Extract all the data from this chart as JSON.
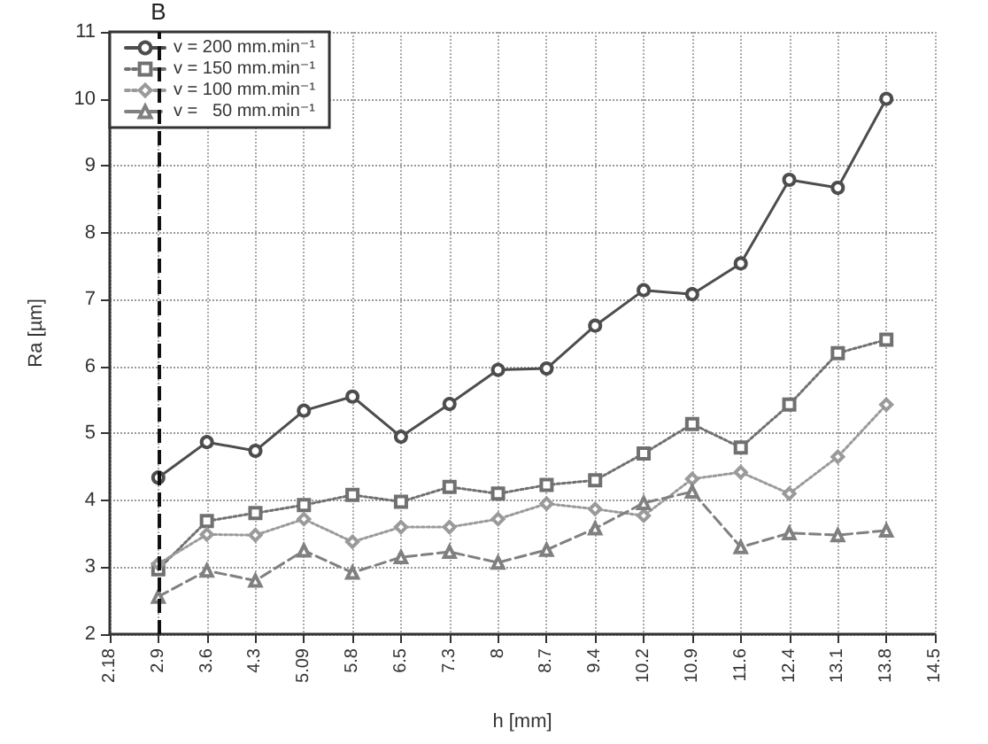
{
  "chart_data": {
    "type": "line",
    "xlabel": "h [mm]",
    "ylabel": "Ra [µm]",
    "categories": [
      "2.18",
      "2.9",
      "3.6",
      "4.3",
      "5.09",
      "5.8",
      "6.5",
      "7.3",
      "8",
      "8.7",
      "9.4",
      "10.2",
      "10.9",
      "11.6",
      "12.4",
      "13.1",
      "13.8",
      "14.5"
    ],
    "series": [
      {
        "name": "v = 200 mm.min⁻¹",
        "color": "#4d4d4d",
        "marker": "circle",
        "line_style": "solid",
        "values": [
          null,
          4.34,
          4.87,
          4.74,
          5.34,
          5.55,
          4.95,
          5.44,
          5.95,
          5.97,
          6.61,
          7.14,
          7.08,
          7.54,
          8.79,
          8.67,
          10.0,
          null
        ]
      },
      {
        "name": "v = 150 mm.min⁻¹",
        "color": "#707070",
        "marker": "square",
        "line_style": "dotted",
        "values": [
          null,
          2.97,
          3.69,
          3.81,
          3.93,
          4.08,
          3.98,
          4.2,
          4.1,
          4.23,
          4.3,
          4.7,
          5.14,
          4.79,
          5.43,
          6.2,
          6.4,
          null
        ]
      },
      {
        "name": "v = 100 mm.min⁻¹",
        "color": "#9a9a9a",
        "marker": "diamond",
        "line_style": "dotted",
        "values": [
          null,
          3.05,
          3.49,
          3.48,
          3.72,
          3.38,
          3.6,
          3.6,
          3.72,
          3.95,
          3.87,
          3.77,
          4.32,
          4.42,
          4.1,
          4.65,
          5.43,
          null
        ]
      },
      {
        "name": "v =   50 mm.min⁻¹",
        "color": "#808080",
        "marker": "triangle",
        "line_style": "dashed",
        "values": [
          null,
          2.56,
          2.95,
          2.8,
          3.25,
          2.92,
          3.15,
          3.23,
          3.07,
          3.26,
          3.58,
          3.96,
          4.13,
          3.3,
          3.51,
          3.48,
          3.55,
          null
        ]
      }
    ],
    "ylim": [
      2,
      11
    ],
    "yticks": [
      2,
      3,
      4,
      5,
      6,
      7,
      8,
      9,
      10,
      11
    ],
    "grid": true,
    "legend": "top left",
    "ref_lines": [
      {
        "axis": "x",
        "value": "2.9",
        "label": "B",
        "color": "#111111",
        "line_style": "dashed"
      }
    ]
  }
}
